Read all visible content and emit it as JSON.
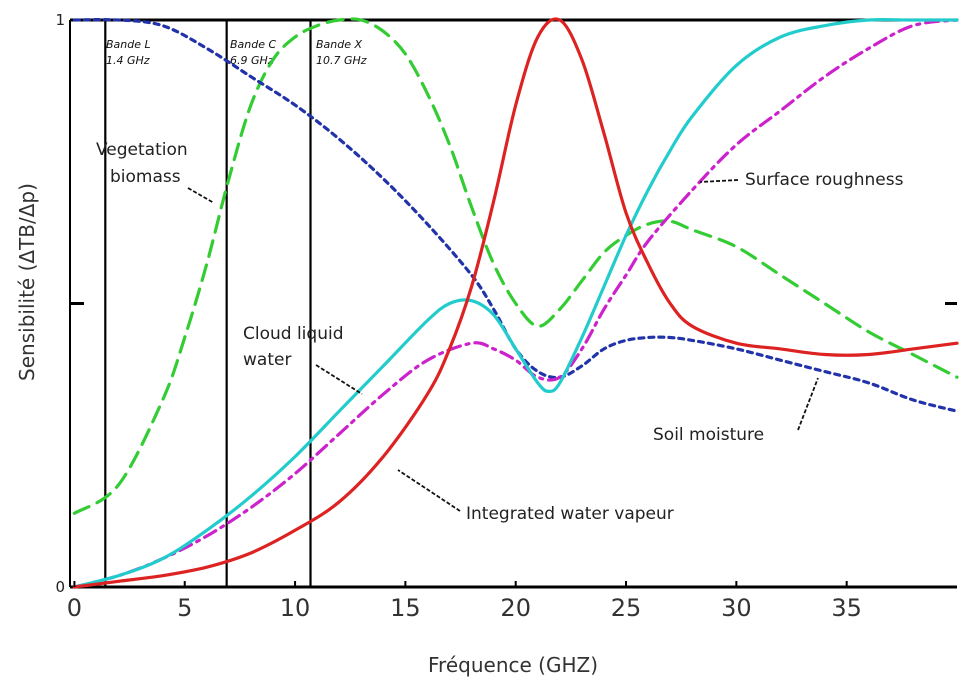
{
  "chart_data": {
    "type": "line",
    "title": "",
    "xlabel": "Fréquence (GHZ)",
    "ylabel": "Sensibilité (ΔTB/Δp)",
    "xlim": [
      -0.2,
      40
    ],
    "ylim": [
      0,
      1
    ],
    "xticks": [
      "0",
      "5",
      "10",
      "15",
      "20",
      "25",
      "30",
      "35"
    ],
    "yticks": [
      "0",
      "1"
    ],
    "grid": false,
    "bands": [
      {
        "name": "Bande L",
        "freq_label": "1.4 GHz",
        "x": 1.4
      },
      {
        "name": "Bande C",
        "freq_label": "6.9 GHz",
        "x": 6.9
      },
      {
        "name": "Bande X",
        "freq_label": "10.7 GHz",
        "x": 10.7
      }
    ],
    "series": [
      {
        "name": "Vegetation biomass",
        "color": "#33cc33",
        "dash": "long-dash",
        "x": [
          0,
          2,
          4,
          5,
          6,
          7,
          8,
          9,
          10,
          11,
          12,
          13,
          14,
          15,
          16,
          17,
          18,
          19,
          20,
          21,
          22,
          23,
          24,
          25,
          26,
          27,
          28,
          30,
          32,
          34,
          36,
          38,
          40
        ],
        "y": [
          0.13,
          0.18,
          0.33,
          0.44,
          0.57,
          0.72,
          0.85,
          0.93,
          0.97,
          0.99,
          1.0,
          1.0,
          0.98,
          0.94,
          0.87,
          0.78,
          0.67,
          0.57,
          0.5,
          0.46,
          0.49,
          0.54,
          0.59,
          0.62,
          0.64,
          0.645,
          0.63,
          0.6,
          0.55,
          0.5,
          0.45,
          0.41,
          0.37
        ]
      },
      {
        "name": "Soil moisture",
        "color": "#2233aa",
        "dash": "short-dash",
        "x": [
          0,
          2,
          4,
          6,
          8,
          10,
          12,
          14,
          16,
          18,
          19,
          20,
          21,
          22,
          23,
          24,
          25,
          26,
          27,
          28,
          30,
          32,
          34,
          36,
          38,
          40
        ],
        "y": [
          1.0,
          1.0,
          0.99,
          0.95,
          0.9,
          0.85,
          0.79,
          0.72,
          0.64,
          0.55,
          0.49,
          0.42,
          0.38,
          0.37,
          0.39,
          0.42,
          0.435,
          0.44,
          0.44,
          0.435,
          0.42,
          0.4,
          0.38,
          0.36,
          0.33,
          0.31
        ]
      },
      {
        "name": "Surface roughness",
        "color": "#cc22cc",
        "dash": "dash-dot",
        "x": [
          0,
          2,
          4,
          6,
          8,
          10,
          12,
          14,
          16,
          18,
          19,
          20,
          21,
          22,
          23,
          24,
          25,
          26,
          28,
          30,
          32,
          34,
          36,
          38,
          40
        ],
        "y": [
          0.0,
          0.02,
          0.05,
          0.09,
          0.14,
          0.2,
          0.27,
          0.34,
          0.4,
          0.43,
          0.42,
          0.4,
          0.37,
          0.37,
          0.42,
          0.49,
          0.55,
          0.61,
          0.7,
          0.78,
          0.84,
          0.9,
          0.95,
          0.99,
          1.0
        ]
      },
      {
        "name": "Cloud liquid water",
        "color": "#22cccc",
        "dash": "solid",
        "x": [
          0,
          2,
          4,
          6,
          8,
          10,
          12,
          14,
          16,
          17,
          18,
          19,
          20,
          21,
          21.5,
          22,
          23,
          24,
          25,
          26,
          27,
          28,
          30,
          32,
          34,
          36,
          38,
          40
        ],
        "y": [
          0.0,
          0.02,
          0.05,
          0.1,
          0.16,
          0.23,
          0.31,
          0.39,
          0.47,
          0.5,
          0.505,
          0.48,
          0.42,
          0.36,
          0.345,
          0.36,
          0.44,
          0.53,
          0.62,
          0.7,
          0.77,
          0.83,
          0.92,
          0.97,
          0.99,
          1.0,
          1.0,
          1.0
        ]
      },
      {
        "name": "Integrated water vapeur",
        "color": "#dd2222",
        "dash": "solid",
        "x": [
          0,
          2,
          4,
          6,
          8,
          10,
          12,
          14,
          16,
          17,
          18,
          19,
          20,
          21,
          22,
          23,
          24,
          25,
          26,
          27,
          28,
          30,
          32,
          34,
          36,
          38,
          40
        ],
        "y": [
          0.0,
          0.01,
          0.02,
          0.035,
          0.06,
          0.1,
          0.15,
          0.23,
          0.34,
          0.42,
          0.53,
          0.68,
          0.85,
          0.97,
          1.0,
          0.93,
          0.8,
          0.66,
          0.57,
          0.5,
          0.46,
          0.43,
          0.42,
          0.41,
          0.41,
          0.42,
          0.43
        ]
      }
    ],
    "annotations": [
      {
        "text": "Vegetation",
        "series": "Vegetation biomass"
      },
      {
        "text": "biomass",
        "series": "Vegetation biomass"
      },
      {
        "text": "Surface roughness",
        "series": "Surface roughness"
      },
      {
        "text": "Cloud liquid",
        "series": "Cloud liquid water"
      },
      {
        "text": "water",
        "series": "Cloud liquid water"
      },
      {
        "text": "Soil moisture",
        "series": "Soil moisture"
      },
      {
        "text": "Integrated water vapeur",
        "series": "Integrated water vapeur"
      }
    ]
  }
}
